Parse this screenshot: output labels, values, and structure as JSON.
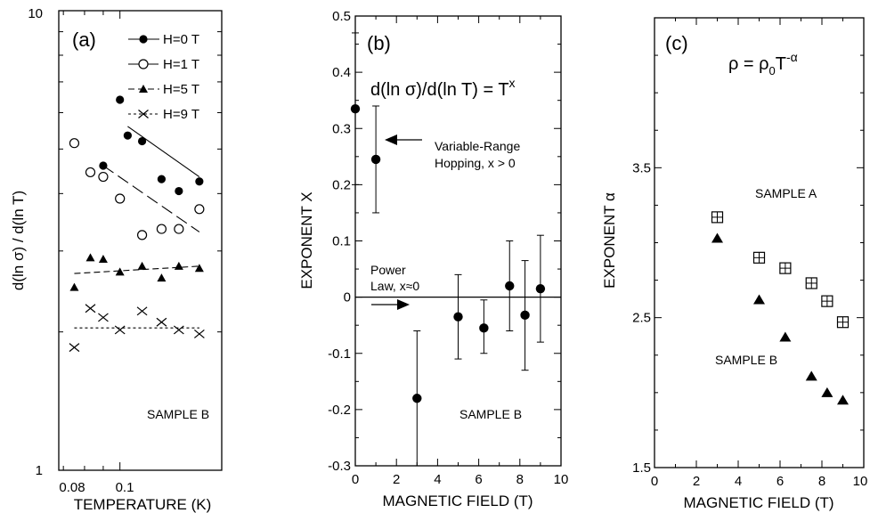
{
  "chart_data": [
    {
      "type": "scatter",
      "panel_label": "(a)",
      "xlabel": "TEMPERATURE (K)",
      "ylabel": "d(ln σ) / d(ln T)",
      "xscale": "log",
      "yscale": "log",
      "xlim": [
        0.068,
        0.19
      ],
      "ylim": [
        1,
        10
      ],
      "ytick_labels": [
        "1",
        "10"
      ],
      "xtick_labels": [
        "0.08",
        "0.1"
      ],
      "xticks": [
        0.08,
        0.1
      ],
      "grid": false,
      "legend_position": "top-right",
      "annotation": "SAMPLE B",
      "series": [
        {
          "name": "H=0 T",
          "marker": "filled-circle",
          "line": "solid",
          "x": [
            0.09,
            0.1,
            0.105,
            0.115,
            0.13,
            0.145,
            0.165
          ],
          "y": [
            4.6,
            6.4,
            5.35,
            5.2,
            4.3,
            4.05,
            4.25
          ],
          "fit": [
            [
              0.105,
              5.6
            ],
            [
              0.165,
              4.35
            ]
          ]
        },
        {
          "name": "H=1 T",
          "marker": "open-circle",
          "line": "long-dash",
          "x": [
            0.075,
            0.083,
            0.09,
            0.1,
            0.115,
            0.13,
            0.145,
            0.165
          ],
          "y": [
            5.15,
            4.45,
            4.35,
            3.9,
            3.25,
            3.35,
            3.35,
            3.7
          ],
          "fit": [
            [
              0.09,
              4.6
            ],
            [
              0.165,
              3.3
            ]
          ]
        },
        {
          "name": "H=5 T",
          "marker": "filled-triangle",
          "line": "short-dash",
          "x": [
            0.075,
            0.083,
            0.09,
            0.1,
            0.115,
            0.13,
            0.145,
            0.165
          ],
          "y": [
            2.5,
            2.9,
            2.88,
            2.7,
            2.78,
            2.62,
            2.78,
            2.75
          ],
          "fit": [
            [
              0.075,
              2.68
            ],
            [
              0.165,
              2.78
            ]
          ]
        },
        {
          "name": "H=9 T",
          "marker": "cross",
          "line": "dotted",
          "x": [
            0.075,
            0.083,
            0.09,
            0.1,
            0.115,
            0.13,
            0.145,
            0.165
          ],
          "y": [
            1.85,
            2.25,
            2.15,
            2.02,
            2.22,
            2.1,
            2.02,
            1.98
          ],
          "fit": [
            [
              0.075,
              2.04
            ],
            [
              0.165,
              2.04
            ]
          ]
        }
      ]
    },
    {
      "type": "scatter",
      "panel_label": "(b)",
      "formula": "d(ln σ)/d(ln T) = T",
      "formula_sup": "x",
      "xlabel": "MAGNETIC FIELD (T)",
      "ylabel": "EXPONENT X",
      "xlim": [
        0,
        10
      ],
      "ylim": [
        -0.3,
        0.5
      ],
      "xticks": [
        0,
        2,
        4,
        6,
        8,
        10
      ],
      "yticks": [
        -0.3,
        -0.2,
        -0.1,
        0,
        0.1,
        0.2,
        0.3,
        0.4,
        0.5
      ],
      "xtick_labels": [
        "0",
        "2",
        "4",
        "6",
        "8",
        "10"
      ],
      "ytick_labels": [
        "-0.3",
        "-0.2",
        "-0.1",
        "0",
        "0.1",
        "0.2",
        "0.3",
        "0.4",
        "0.5"
      ],
      "grid": false,
      "reference_line_y": 0,
      "annotations": {
        "vrh_line1": "Variable-Range",
        "vrh_line2": "Hopping, x > 0",
        "power_line1": "Power",
        "power_line2": "Law, x≈0",
        "sample": "SAMPLE  B"
      },
      "series": [
        {
          "marker": "filled-circle",
          "x": [
            0,
            1,
            3,
            5,
            6.25,
            7.5,
            8.25,
            9
          ],
          "y": [
            0.335,
            0.245,
            -0.18,
            -0.035,
            -0.055,
            0.02,
            -0.032,
            0.015
          ],
          "err_low": [
            0.2,
            0.15,
            -0.3,
            -0.11,
            -0.1,
            -0.06,
            -0.13,
            -0.08
          ],
          "err_high": [
            0.47,
            0.34,
            -0.06,
            0.04,
            -0.005,
            0.1,
            0.065,
            0.11
          ]
        }
      ]
    },
    {
      "type": "scatter",
      "panel_label": "(c)",
      "formula_base": "ρ = ρ",
      "formula_sub": "0",
      "formula_T": "T",
      "formula_sup": "-α",
      "xlabel": "MAGNETIC FIELD (T)",
      "ylabel": "EXPONENT α",
      "xlim": [
        0,
        10
      ],
      "ylim": [
        1.5,
        4.5
      ],
      "xticks": [
        0,
        2,
        4,
        6,
        8,
        10
      ],
      "yticks": [
        1.5,
        2.5,
        3.5
      ],
      "xtick_labels": [
        "0",
        "2",
        "4",
        "6",
        "8",
        "10"
      ],
      "ytick_labels": [
        "1.5",
        "2.5",
        "3.5"
      ],
      "grid": false,
      "series": [
        {
          "name": "SAMPLE A",
          "marker": "boxed-plus",
          "x": [
            3,
            5,
            6.25,
            7.5,
            8.25,
            9
          ],
          "y": [
            3.17,
            2.9,
            2.83,
            2.73,
            2.61,
            2.47
          ]
        },
        {
          "name": "SAMPLE B",
          "marker": "filled-triangle",
          "x": [
            3,
            5,
            6.25,
            7.5,
            8.25,
            9
          ],
          "y": [
            3.03,
            2.62,
            2.37,
            2.11,
            2.0,
            1.95
          ]
        }
      ]
    }
  ]
}
